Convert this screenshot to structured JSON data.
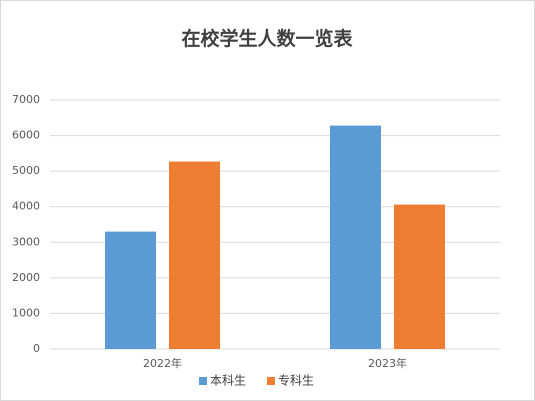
{
  "chart_data": {
    "type": "bar",
    "title": "在校学生人数一览表",
    "categories": [
      "2022年",
      "2023年"
    ],
    "series": [
      {
        "name": "本科生",
        "color": "#5b9bd5",
        "values": [
          3300,
          6280
        ]
      },
      {
        "name": "专科生",
        "color": "#ed7d31",
        "values": [
          5270,
          4060
        ]
      }
    ],
    "ylim": [
      0,
      7000
    ],
    "yticks": [
      0,
      1000,
      2000,
      3000,
      4000,
      5000,
      6000,
      7000
    ],
    "grid": true,
    "legend": "bottom"
  }
}
